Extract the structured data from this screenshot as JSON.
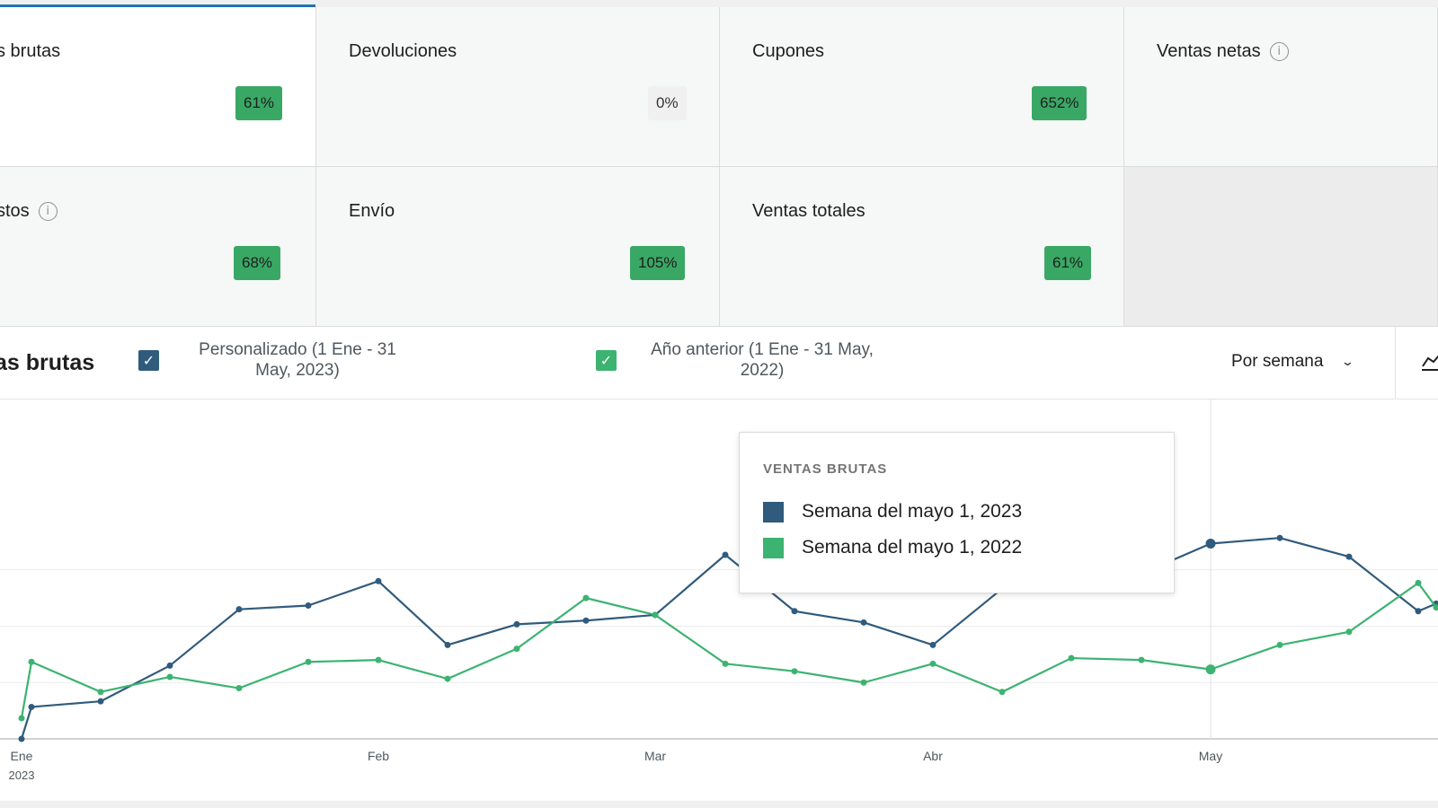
{
  "tiles": [
    {
      "label": "s brutas",
      "change": "61%",
      "selected": true,
      "cut": true
    },
    {
      "label": "Devoluciones",
      "change": "0%"
    },
    {
      "label": "Cupones",
      "change": "652%"
    },
    {
      "label": "Ventas netas",
      "info": true
    },
    {
      "label": "stos",
      "change": "68%",
      "info": true,
      "cut": true
    },
    {
      "label": "Envío",
      "change": "105%"
    },
    {
      "label": "Ventas totales",
      "change": "61%"
    }
  ],
  "chart_header": {
    "title": "as brutas",
    "legend": [
      {
        "line1": "Personalizado (1 Ene - 31",
        "line2": "May, 2023)",
        "color": "#305b7d",
        "checked": true
      },
      {
        "line1": "Año anterior (1 Ene - 31 May,",
        "line2": "2022)",
        "color": "#3cb371",
        "checked": true
      }
    ],
    "interval": "Por semana",
    "interval_icon": "chevron-down-icon",
    "chart_type_icon": "line-chart-icon"
  },
  "tooltip": {
    "title": "VENTAS BRUTAS",
    "rows": [
      {
        "label": "Semana del mayo 1, 2023",
        "color": "#305b7d"
      },
      {
        "label": "Semana del mayo 1, 2022",
        "color": "#3cb371"
      }
    ]
  },
  "chart_data": {
    "type": "line",
    "x": [
      "Ene 1",
      "Ene 2",
      "Ene 8",
      "Ene 15",
      "Ene 22",
      "Ene 29",
      "Feb 5",
      "Feb 12",
      "Feb 19",
      "Feb 26",
      "Mar 5",
      "Mar 12",
      "Mar 19",
      "Mar 26",
      "Abr 2",
      "Abr 9",
      "Abr 16",
      "Abr 23",
      "Abr 30",
      "May 7",
      "May 14",
      "May 21",
      "May 28"
    ],
    "tick_labels": [
      {
        "label": "Ene",
        "sublabel": "2023",
        "x": "Ene 1"
      },
      {
        "label": "Feb",
        "x": "Feb 5"
      },
      {
        "label": "Mar",
        "x": "Mar 5"
      },
      {
        "label": "Abr",
        "x": "Abr 2"
      },
      {
        "label": "May",
        "x": "Abr 30"
      }
    ],
    "series": [
      {
        "color": "#305b7d",
        "values": [
          0,
          17,
          20,
          39,
          69,
          71,
          84,
          50,
          61,
          63,
          66,
          98,
          68,
          62,
          50,
          80,
          91,
          88,
          104,
          107,
          97,
          68,
          72
        ]
      },
      {
        "color": "#3cb371",
        "values": [
          11,
          41,
          25,
          33,
          27,
          41,
          42,
          32,
          48,
          75,
          66,
          40,
          36,
          30,
          40,
          25,
          43,
          42,
          37,
          50,
          57,
          83,
          70
        ]
      }
    ],
    "ylim": [
      0,
      120
    ],
    "gridlines": true,
    "highlighted_x": "Abr 30"
  }
}
